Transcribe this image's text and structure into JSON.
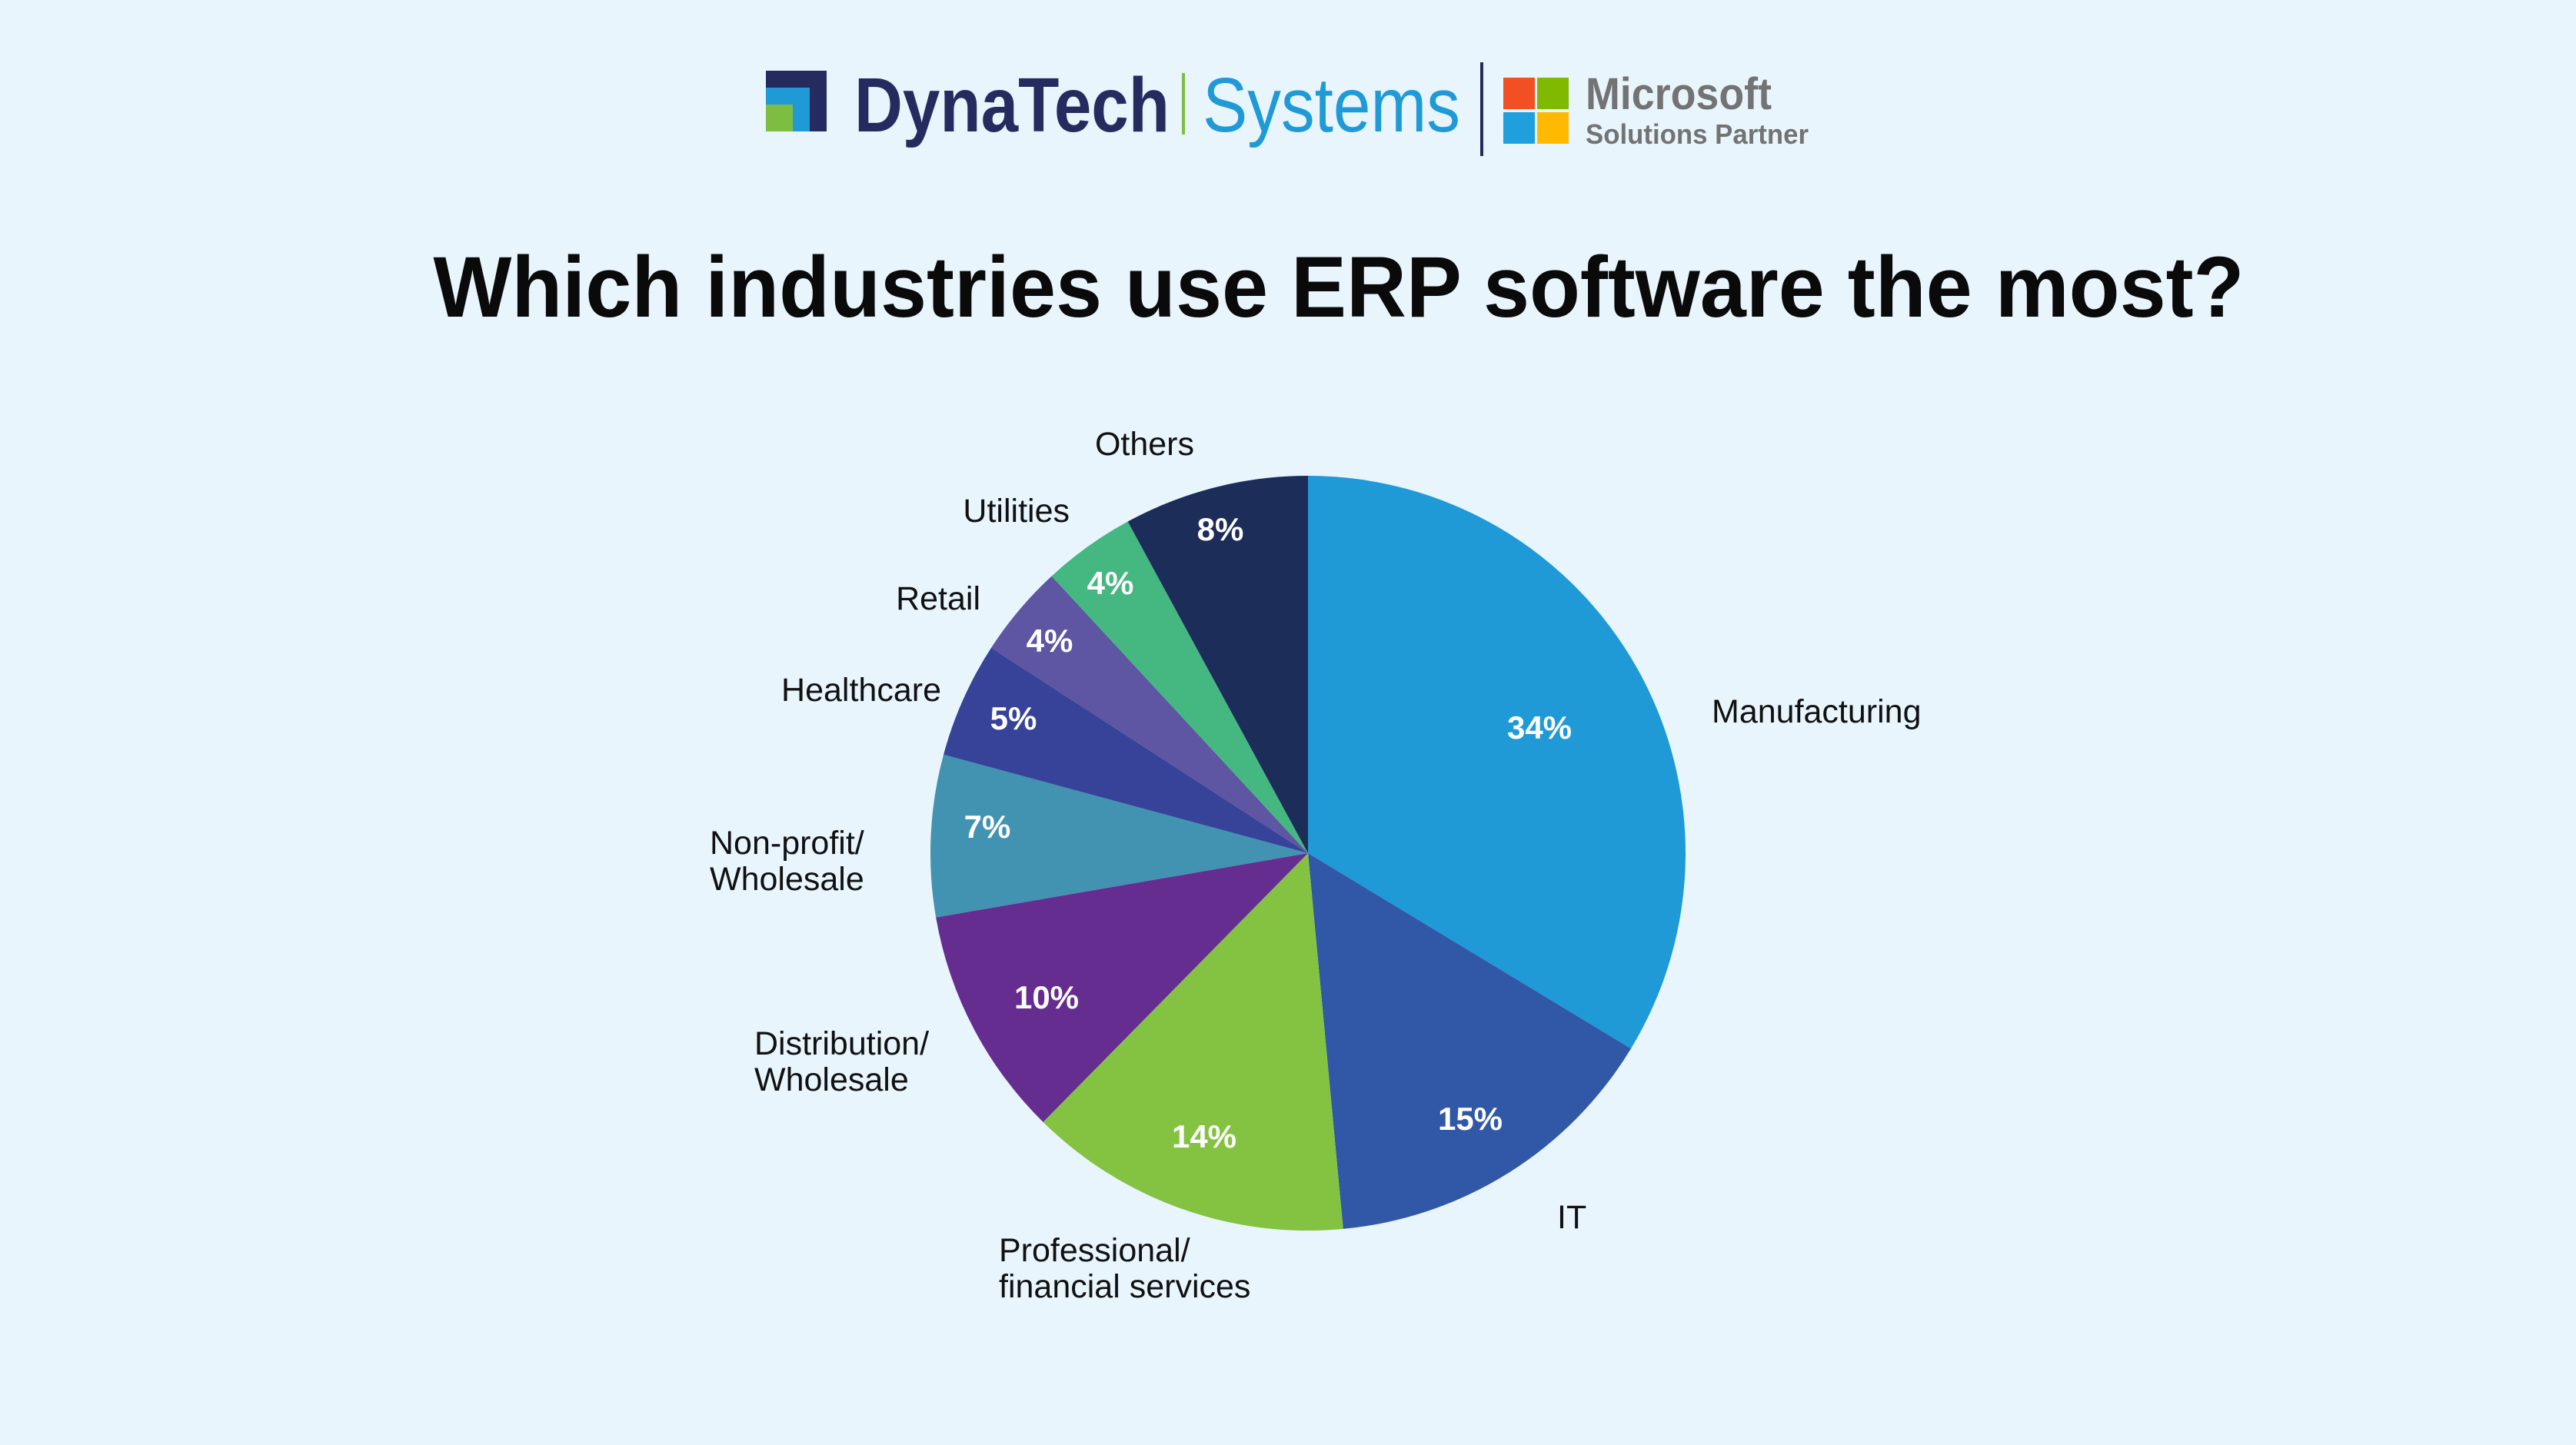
{
  "brand": {
    "name_bold": "DynaTech",
    "name_light": "Systems",
    "partner_line1": "Microsoft",
    "partner_line2": "Solutions Partner",
    "colors": {
      "navy": "#252b5e",
      "blue": "#1f9ad6",
      "green": "#7dbe42",
      "ms_red": "#f25022",
      "ms_green": "#7fba00",
      "ms_blue": "#00a4ef",
      "ms_yellow": "#ffb900",
      "ms_text": "#737373"
    }
  },
  "chart_data": {
    "type": "pie",
    "title": "Which industries use ERP software the most?",
    "start": "top, clockwise",
    "slices": [
      {
        "label": "Manufacturing",
        "value": 34,
        "display": "34%",
        "color": "#1f9ad6"
      },
      {
        "label": "IT",
        "value": 15,
        "display": "15%",
        "color": "#3158a6"
      },
      {
        "label": "Professional/ financial services",
        "lines": [
          "Professional/",
          "financial services"
        ],
        "value": 14,
        "display": "14%",
        "color": "#84c241"
      },
      {
        "label": "Distribution/ Wholesale",
        "lines": [
          "Distribution/",
          "Wholesale"
        ],
        "value": 10,
        "display": "10%",
        "color": "#652d8f"
      },
      {
        "label": "Non-profit/ Wholesale",
        "lines": [
          "Non-profit/",
          "Wholesale"
        ],
        "value": 7,
        "display": "7%",
        "color": "#4292b1"
      },
      {
        "label": "Healthcare",
        "value": 5,
        "display": "5%",
        "color": "#374398"
      },
      {
        "label": "Retail",
        "value": 4,
        "display": "4%",
        "color": "#5e55a3"
      },
      {
        "label": "Utilities",
        "value": 4,
        "display": "4%",
        "color": "#45b781"
      },
      {
        "label": "Others",
        "value": 8,
        "display": "8%",
        "color": "#1d2d59"
      }
    ]
  }
}
